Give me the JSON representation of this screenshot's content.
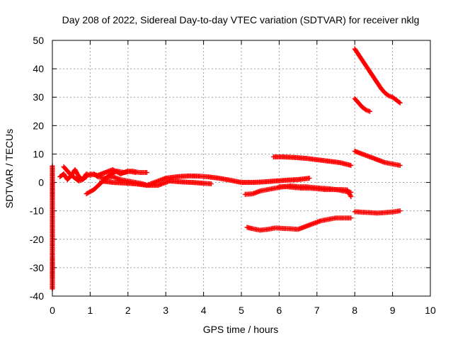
{
  "chart_data": {
    "type": "scatter",
    "title": "Day 208 of 2022, Sidereal Day-to-day VTEC variation (SDTVAR) for receiver nklg",
    "xlabel": "GPS time / hours",
    "ylabel": "SDTVAR / TECUs",
    "xlim": [
      0,
      10
    ],
    "ylim": [
      -40,
      50
    ],
    "xticks": [
      "0",
      "1",
      "2",
      "3",
      "4",
      "5",
      "6",
      "7",
      "8",
      "9",
      "10"
    ],
    "yticks": [
      "-40",
      "-30",
      "-20",
      "-10",
      "0",
      "10",
      "20",
      "30",
      "40",
      "50"
    ],
    "grid": true,
    "marker": "plus",
    "color": "#ff0000",
    "series": [
      {
        "x": [
          0.0,
          0.0,
          0.0
        ],
        "y": [
          5.8,
          -20.5,
          -37.5
        ]
      },
      {
        "x": [
          0.2,
          0.3,
          0.4,
          0.5,
          0.6,
          0.7,
          0.8,
          0.9,
          1.0,
          1.1,
          1.2,
          1.4,
          1.6,
          1.8,
          2.0,
          2.2,
          2.4,
          2.5,
          2.6,
          2.8,
          3.0,
          3.3,
          3.6,
          3.9,
          4.1,
          4.4,
          4.7,
          5.0,
          5.3,
          5.6,
          5.9,
          6.2,
          6.5,
          6.8
        ],
        "y": [
          2.0,
          3.0,
          1.0,
          2.5,
          4.5,
          2.0,
          1.0,
          3.0,
          2.5,
          3.0,
          2.0,
          1.5,
          2.0,
          1.0,
          0.5,
          0.0,
          -0.5,
          -1.0,
          -0.5,
          0.5,
          1.5,
          2.0,
          2.3,
          2.2,
          2.0,
          1.5,
          0.8,
          0.0,
          0.0,
          0.2,
          0.5,
          0.8,
          1.0,
          1.5
        ]
      },
      {
        "x": [
          0.3,
          0.4,
          0.5,
          0.6,
          0.7,
          0.8,
          0.9
        ],
        "y": [
          5.5,
          4.0,
          2.5,
          1.5,
          0.5,
          1.0,
          2.0
        ]
      },
      {
        "x": [
          0.9,
          1.1,
          1.3,
          1.5,
          1.7,
          1.9,
          2.1,
          2.3,
          2.5
        ],
        "y": [
          -4.0,
          -2.5,
          0.0,
          2.5,
          4.0,
          3.5,
          4.0,
          3.5,
          3.5
        ]
      },
      {
        "x": [
          1.0,
          1.2,
          1.4,
          1.6,
          1.8,
          2.0,
          2.2
        ],
        "y": [
          3.0,
          2.5,
          3.5,
          4.5,
          3.0,
          4.0,
          3.5
        ]
      },
      {
        "x": [
          1.3,
          1.6,
          1.9,
          2.2,
          2.5,
          2.8,
          3.1,
          3.4,
          3.7,
          4.0,
          4.2
        ],
        "y": [
          0.5,
          0.0,
          -0.2,
          -0.5,
          -1.0,
          -1.0,
          0.5,
          0.2,
          0.0,
          -0.3,
          -0.5
        ]
      },
      {
        "x": [
          5.1,
          5.3,
          5.5,
          5.7,
          5.9,
          6.1,
          6.3,
          6.5,
          6.7,
          6.9,
          7.1,
          7.3,
          7.5,
          7.7,
          7.9
        ],
        "y": [
          -4.2,
          -4.0,
          -3.0,
          -2.5,
          -2.0,
          -1.5,
          -1.2,
          -1.5,
          -1.5,
          -1.8,
          -2.0,
          -2.2,
          -2.5,
          -3.0,
          -3.5
        ]
      },
      {
        "x": [
          6.0,
          6.2,
          6.4,
          6.6,
          6.8,
          7.0,
          7.2,
          7.4,
          7.6,
          7.8,
          7.9
        ],
        "y": [
          -1.5,
          -1.5,
          -1.8,
          -2.0,
          -2.0,
          -2.2,
          -2.5,
          -2.5,
          -2.5,
          -2.6,
          -5.0
        ]
      },
      {
        "x": [
          5.85,
          6.1,
          6.4,
          6.7,
          7.0,
          7.3,
          7.6,
          7.9
        ],
        "y": [
          9.0,
          9.0,
          8.8,
          8.5,
          8.0,
          7.5,
          7.0,
          6.0
        ]
      },
      {
        "x": [
          5.15,
          5.3,
          5.5,
          5.7,
          5.9,
          6.1,
          6.3,
          6.5,
          6.7,
          6.9,
          7.1,
          7.3,
          7.5,
          7.7,
          7.9
        ],
        "y": [
          -15.8,
          -16.3,
          -16.8,
          -16.5,
          -16.0,
          -16.2,
          -16.3,
          -16.5,
          -15.5,
          -14.5,
          -13.5,
          -13.0,
          -12.5,
          -12.5,
          -12.5
        ]
      },
      {
        "x": [
          8.0,
          8.1,
          8.2,
          8.3,
          8.4,
          8.5,
          8.6,
          8.7,
          8.8,
          8.9,
          9.0,
          9.1,
          9.2
        ],
        "y": [
          47.0,
          45.0,
          43.0,
          41.0,
          39.0,
          37.0,
          35.0,
          33.0,
          31.5,
          30.5,
          30.0,
          29.0,
          28.0
        ]
      },
      {
        "x": [
          8.0,
          8.1,
          8.2,
          8.3,
          8.4
        ],
        "y": [
          29.5,
          28.0,
          26.5,
          25.5,
          25.0
        ]
      },
      {
        "x": [
          8.0,
          8.2,
          8.4,
          8.6,
          8.8,
          9.0,
          9.2
        ],
        "y": [
          11.0,
          10.0,
          9.0,
          8.0,
          7.0,
          6.5,
          6.0
        ]
      },
      {
        "x": [
          8.0,
          8.2,
          8.4,
          8.6,
          8.8,
          9.0,
          9.2
        ],
        "y": [
          -10.3,
          -10.5,
          -10.6,
          -10.8,
          -10.6,
          -10.4,
          -10.0
        ]
      }
    ]
  }
}
